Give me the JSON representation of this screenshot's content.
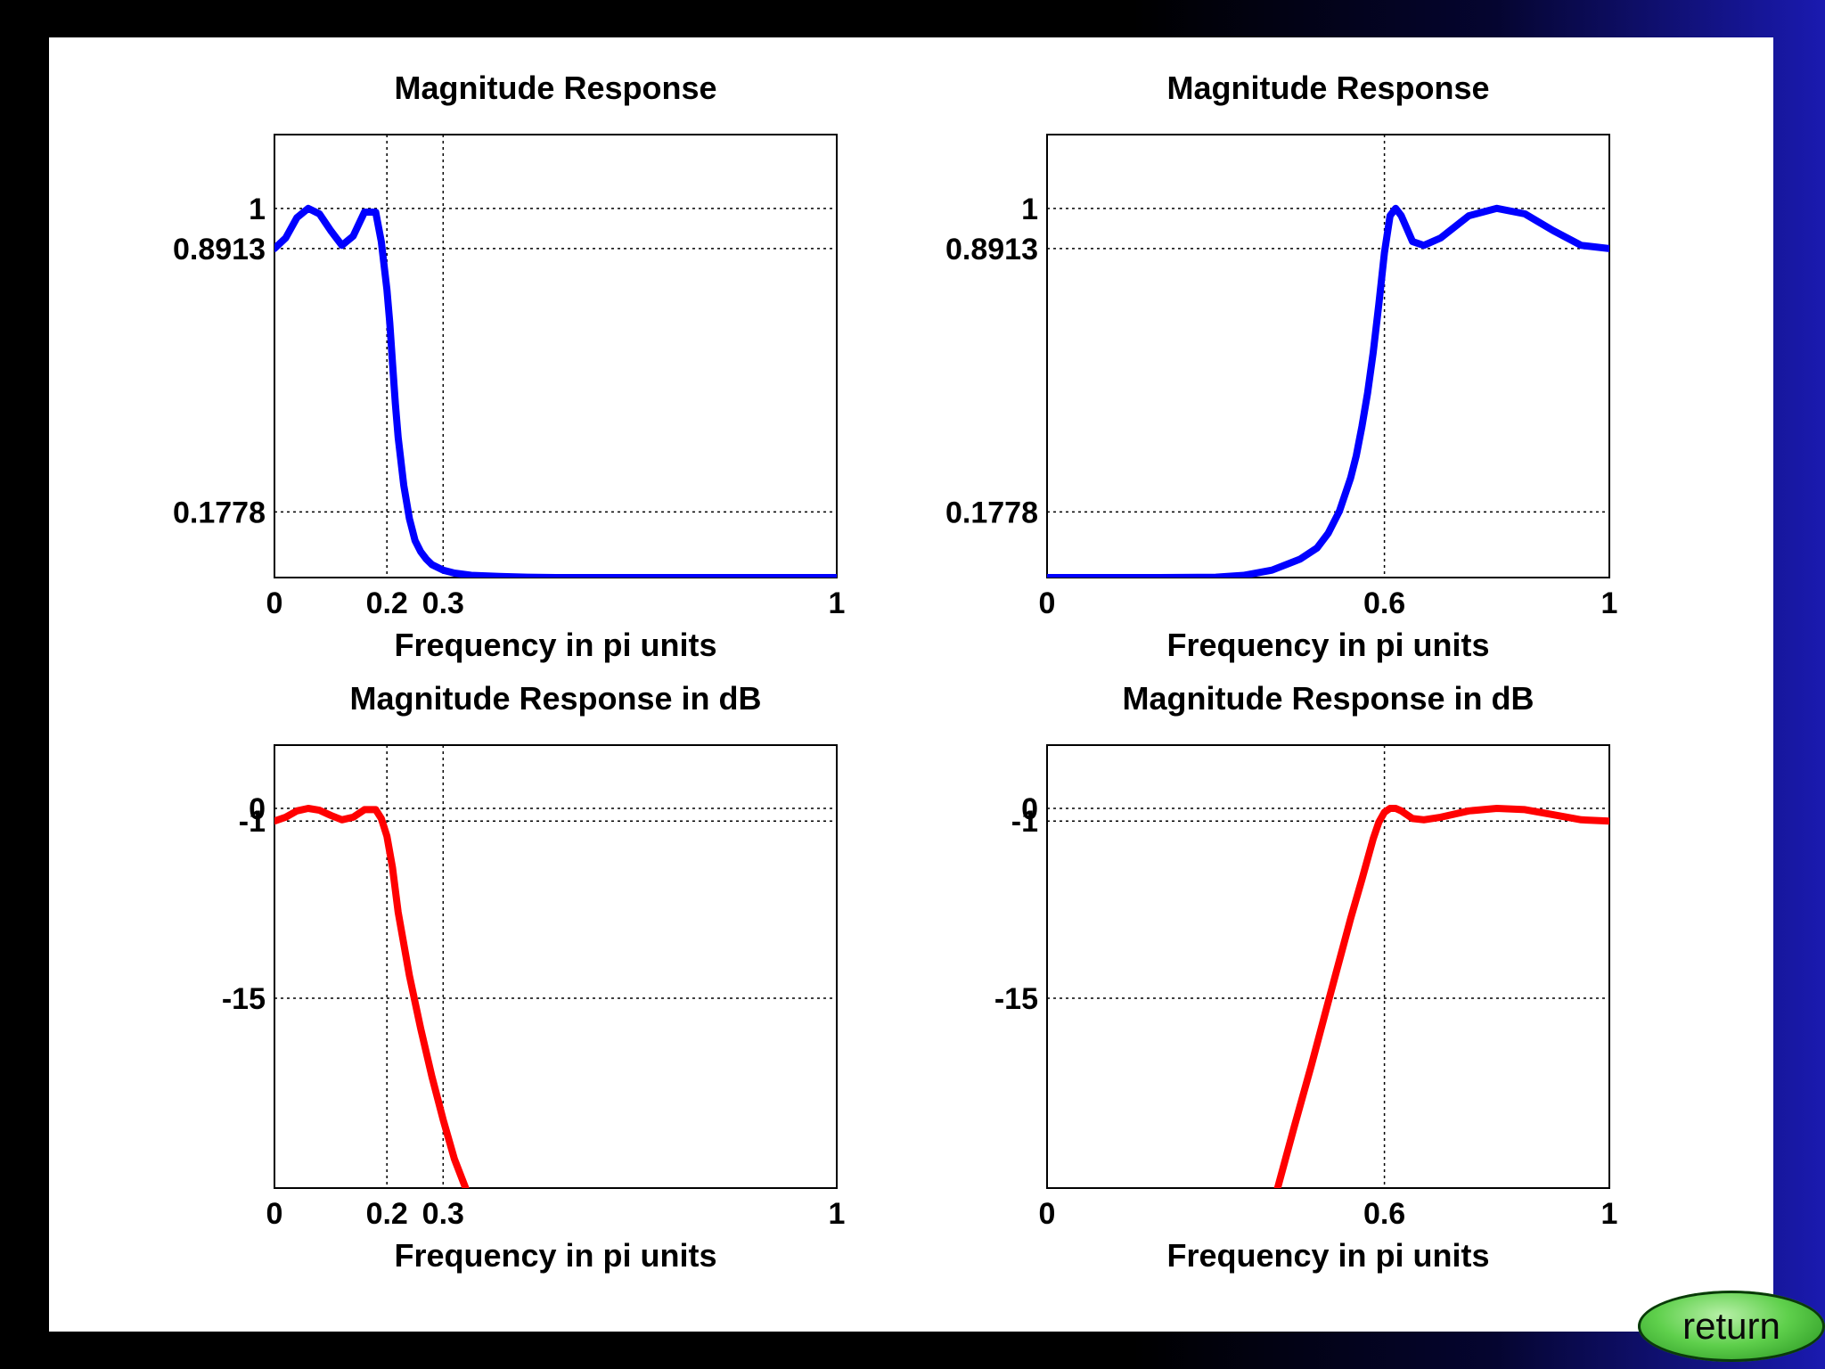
{
  "colors": {
    "magnitude": "#0000ff",
    "db": "#ff0000",
    "grid": "#000000"
  },
  "return_button": {
    "label": "return"
  },
  "chart_data": [
    {
      "type": "line",
      "title": "Magnitude Response",
      "xlabel": "Frequency in pi units",
      "ylabel": "",
      "xlim": [
        0,
        1
      ],
      "ylim": [
        0,
        1.2
      ],
      "xticks": [
        0,
        0.2,
        0.3,
        1
      ],
      "xtick_labels": [
        "0",
        "0.2",
        "0.3",
        "1"
      ],
      "yticks": [
        0.1778,
        0.8913,
        1
      ],
      "ytick_labels": [
        "0.1778",
        "0.8913",
        "1"
      ],
      "grid": "dotted at ticks",
      "series": [
        {
          "color": "#0000ff",
          "x": [
            0,
            0.02,
            0.04,
            0.06,
            0.08,
            0.1,
            0.12,
            0.14,
            0.16,
            0.18,
            0.19,
            0.2,
            0.205,
            0.21,
            0.215,
            0.22,
            0.23,
            0.24,
            0.25,
            0.26,
            0.27,
            0.28,
            0.3,
            0.32,
            0.35,
            0.4,
            0.45,
            0.5,
            0.6,
            0.7,
            0.8,
            0.9,
            1.0
          ],
          "y": [
            0.8913,
            0.92,
            0.975,
            1.0,
            0.985,
            0.94,
            0.9,
            0.925,
            0.99,
            0.99,
            0.91,
            0.78,
            0.69,
            0.58,
            0.47,
            0.38,
            0.25,
            0.16,
            0.1,
            0.07,
            0.05,
            0.035,
            0.02,
            0.012,
            0.006,
            0.003,
            0.001,
            0,
            0,
            0,
            0,
            0,
            0
          ]
        }
      ]
    },
    {
      "type": "line",
      "title": "Magnitude Response",
      "xlabel": "Frequency in pi units",
      "ylabel": "",
      "xlim": [
        0,
        1
      ],
      "ylim": [
        0,
        1.2
      ],
      "xticks": [
        0,
        0.6,
        1
      ],
      "xtick_labels": [
        "0",
        "0.6",
        "1"
      ],
      "yticks": [
        0.1778,
        0.8913,
        1
      ],
      "ytick_labels": [
        "0.1778",
        "0.8913",
        "1"
      ],
      "grid": "dotted at ticks",
      "series": [
        {
          "color": "#0000ff",
          "x": [
            0,
            0.1,
            0.2,
            0.3,
            0.35,
            0.4,
            0.45,
            0.48,
            0.5,
            0.52,
            0.54,
            0.55,
            0.56,
            0.57,
            0.58,
            0.59,
            0.6,
            0.61,
            0.62,
            0.63,
            0.65,
            0.67,
            0.7,
            0.75,
            0.8,
            0.85,
            0.9,
            0.95,
            1.0
          ],
          "y": [
            0,
            0,
            0,
            0.001,
            0.006,
            0.02,
            0.05,
            0.08,
            0.12,
            0.18,
            0.27,
            0.33,
            0.41,
            0.5,
            0.61,
            0.74,
            0.88,
            0.98,
            1.0,
            0.98,
            0.91,
            0.9,
            0.92,
            0.98,
            1.0,
            0.985,
            0.94,
            0.9,
            0.8913
          ]
        }
      ]
    },
    {
      "type": "line",
      "title": "Magnitude Response in dB",
      "xlabel": "Frequency in pi units",
      "ylabel": "",
      "xlim": [
        0,
        1
      ],
      "ylim": [
        -30,
        5
      ],
      "xticks": [
        0,
        0.2,
        0.3,
        1
      ],
      "xtick_labels": [
        "0",
        "0.2",
        "0.3",
        "1"
      ],
      "yticks": [
        -15,
        -1,
        0
      ],
      "ytick_labels": [
        "-15",
        "-1",
        "0"
      ],
      "grid": "dotted at ticks",
      "series": [
        {
          "color": "#ff0000",
          "x": [
            0,
            0.02,
            0.04,
            0.06,
            0.08,
            0.1,
            0.12,
            0.14,
            0.16,
            0.18,
            0.19,
            0.2,
            0.21,
            0.22,
            0.24,
            0.26,
            0.28,
            0.3,
            0.32,
            0.34
          ],
          "y": [
            -1,
            -0.7,
            -0.2,
            0,
            -0.15,
            -0.55,
            -0.9,
            -0.7,
            -0.1,
            -0.1,
            -0.8,
            -2.2,
            -4.7,
            -8.2,
            -13.2,
            -17.4,
            -21.2,
            -24.6,
            -27.7,
            -30
          ]
        }
      ]
    },
    {
      "type": "line",
      "title": "Magnitude Response in dB",
      "xlabel": "Frequency in pi units",
      "ylabel": "",
      "xlim": [
        0,
        1
      ],
      "ylim": [
        -30,
        5
      ],
      "xticks": [
        0,
        0.6,
        1
      ],
      "xtick_labels": [
        "0",
        "0.6",
        "1"
      ],
      "yticks": [
        -15,
        -1,
        0
      ],
      "ytick_labels": [
        "-15",
        "-1",
        "0"
      ],
      "grid": "dotted at ticks",
      "series": [
        {
          "color": "#ff0000",
          "x": [
            0.41,
            0.44,
            0.47,
            0.5,
            0.52,
            0.54,
            0.56,
            0.58,
            0.59,
            0.6,
            0.61,
            0.62,
            0.63,
            0.65,
            0.67,
            0.7,
            0.75,
            0.8,
            0.85,
            0.9,
            0.95,
            1.0
          ],
          "y": [
            -30,
            -25.1,
            -20.3,
            -15.3,
            -12,
            -8.7,
            -5.6,
            -2.4,
            -1.1,
            -0.3,
            0,
            0,
            -0.2,
            -0.8,
            -0.9,
            -0.7,
            -0.2,
            0,
            -0.1,
            -0.5,
            -0.9,
            -1
          ]
        }
      ]
    }
  ]
}
